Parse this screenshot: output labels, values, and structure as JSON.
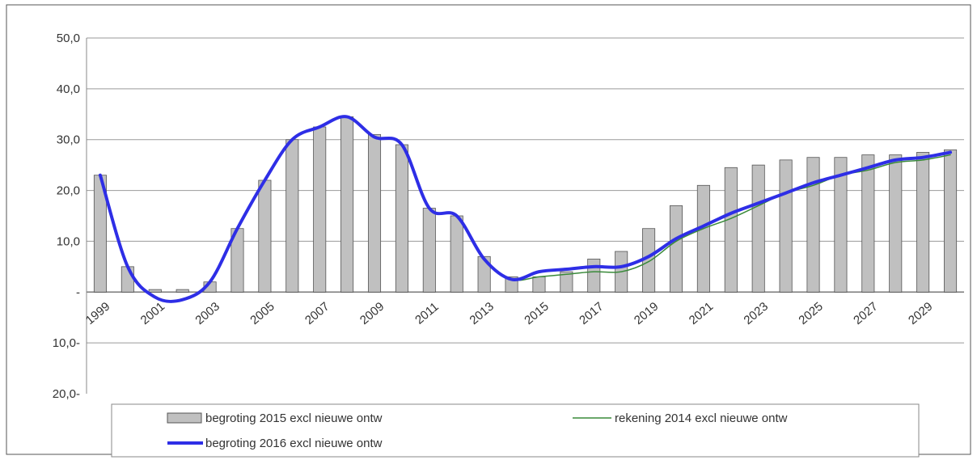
{
  "chart_data": {
    "type": "bar",
    "title": "",
    "xlabel": "",
    "ylabel": "",
    "ylim": [
      -20,
      50
    ],
    "grid": true,
    "legend_position": "bottom",
    "y_tick_labels": [
      "50,0",
      "40,0",
      "30,0",
      "20,0",
      "10,0",
      "-",
      "10,0-",
      "20,0-"
    ],
    "y_tick_values": [
      50,
      40,
      30,
      20,
      10,
      0,
      -10,
      -20
    ],
    "x": [
      1999,
      2000,
      2001,
      2002,
      2003,
      2004,
      2005,
      2006,
      2007,
      2008,
      2009,
      2010,
      2011,
      2012,
      2013,
      2014,
      2015,
      2016,
      2017,
      2018,
      2019,
      2020,
      2021,
      2022,
      2023,
      2024,
      2025,
      2026,
      2027,
      2028,
      2029,
      2030
    ],
    "x_tick_labels": [
      "1999",
      "2001",
      "2003",
      "2005",
      "2007",
      "2009",
      "2011",
      "2013",
      "2015",
      "2017",
      "2019",
      "2021",
      "2023",
      "2025",
      "2027",
      "2029"
    ],
    "series": [
      {
        "name": "begroting 2015 excl nieuwe ontw",
        "kind": "bar",
        "color": "#c0c0c0",
        "values": [
          23,
          5,
          0.5,
          0.5,
          2,
          12.5,
          22,
          30,
          32.5,
          34.5,
          31,
          29,
          16.5,
          15,
          7,
          3,
          3,
          4,
          6.5,
          8,
          12.5,
          17,
          21,
          24.5,
          25,
          26,
          26.5,
          26.5,
          27,
          27,
          27.5,
          28
        ]
      },
      {
        "name": "rekening 2014 excl nieuwe ontw",
        "kind": "line",
        "color": "#3a8a3a",
        "values": [
          23,
          5,
          -1,
          -1.5,
          2,
          12.5,
          22,
          30,
          32.5,
          34.5,
          30.5,
          29,
          16.5,
          15,
          6.5,
          2.5,
          3,
          3.5,
          4,
          4,
          6,
          10,
          12.5,
          14.5,
          17,
          19.5,
          21,
          23,
          24,
          25.5,
          26,
          27
        ]
      },
      {
        "name": "begroting 2016 excl nieuwe ontw",
        "kind": "line",
        "color": "#2e2ee6",
        "values": [
          23,
          5,
          -1,
          -1.5,
          2,
          12.5,
          22,
          30,
          32.5,
          34.5,
          30.5,
          29,
          16.5,
          15,
          6.5,
          2.5,
          4,
          4.5,
          5,
          5,
          7,
          10.5,
          13,
          15.5,
          17.5,
          19.5,
          21.5,
          23,
          24.5,
          26,
          26.5,
          27.5
        ]
      }
    ]
  }
}
